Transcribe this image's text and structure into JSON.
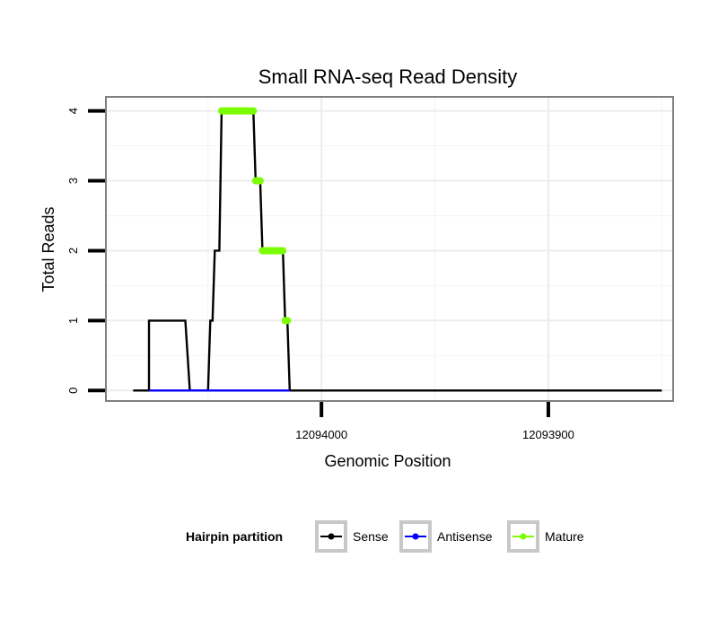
{
  "chart_data": {
    "type": "line",
    "title": "Small RNA-seq Read Density",
    "xlabel": "Genomic Position",
    "ylabel": "Total Reads",
    "xlim": [
      12094095,
      12093845
    ],
    "ylim": [
      -0.15,
      4.2
    ],
    "xticks": [
      {
        "value": 12094000,
        "label": "12094000"
      },
      {
        "value": 12093900,
        "label": "12093900"
      }
    ],
    "yticks": [
      {
        "value": 0,
        "label": "0"
      },
      {
        "value": 1,
        "label": "1"
      },
      {
        "value": 2,
        "label": "2"
      },
      {
        "value": 3,
        "label": "3"
      },
      {
        "value": 4,
        "label": "4"
      }
    ],
    "grid": true,
    "legend": {
      "title": "Hairpin partition",
      "position": "bottom",
      "entries": [
        {
          "name": "Sense",
          "color": "#000000"
        },
        {
          "name": "Antisense",
          "color": "#0000ff"
        },
        {
          "name": "Mature",
          "color": "#7cfc00"
        }
      ]
    },
    "series": [
      {
        "name": "Sense",
        "color": "#000000",
        "points": [
          [
            12094083,
            0
          ],
          [
            12094076,
            0
          ],
          [
            12094076,
            1
          ],
          [
            12094060,
            1
          ],
          [
            12094058,
            0
          ],
          [
            12094050,
            0
          ],
          [
            12094049,
            1
          ],
          [
            12094048,
            1
          ],
          [
            12094047,
            2
          ],
          [
            12094045,
            2
          ],
          [
            12094044,
            4
          ],
          [
            12094030,
            4
          ],
          [
            12094029,
            3
          ],
          [
            12094027,
            3
          ],
          [
            12094026,
            2
          ],
          [
            12094017,
            2
          ],
          [
            12094016,
            1
          ],
          [
            12094015,
            1
          ],
          [
            12094014,
            0
          ],
          [
            12093850,
            0
          ]
        ]
      },
      {
        "name": "Antisense",
        "color": "#0000ff",
        "points": [
          [
            12094076,
            0
          ],
          [
            12094014,
            0
          ]
        ]
      },
      {
        "name": "Mature",
        "color": "#7cfc00",
        "segments": [
          {
            "x": [
              12094044,
              12094030
            ],
            "y": 4
          },
          {
            "x": [
              12094029,
              12094027
            ],
            "y": 3
          },
          {
            "x": [
              12094026,
              12094017
            ],
            "y": 2
          },
          {
            "x": [
              12094016,
              12094015
            ],
            "y": 1
          }
        ]
      }
    ]
  }
}
